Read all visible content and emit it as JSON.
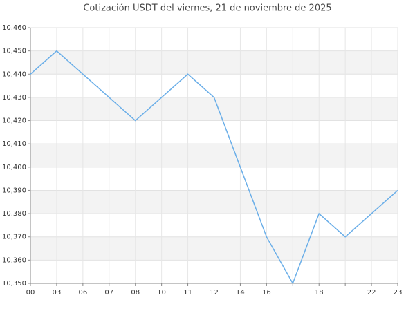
{
  "chart_data": {
    "type": "line",
    "title": "Cotización USDT del viernes, 21 de noviembre de 2025",
    "categories": [
      "00",
      "03",
      "06",
      "07",
      "08",
      "10",
      "11",
      "12",
      "14",
      "16",
      null,
      "18",
      null,
      "22",
      "23"
    ],
    "series": [
      {
        "color": "#6aaee8",
        "values": [
          10.44,
          10.45,
          10.44,
          10.43,
          10.42,
          10.43,
          10.44,
          10.43,
          10.4,
          10.37,
          10.35,
          10.38,
          10.37,
          10.38,
          10.39
        ]
      }
    ],
    "ylim": [
      10.35,
      10.46
    ],
    "yticks": [
      {
        "value": 10.35,
        "label": "10,350"
      },
      {
        "value": 10.36,
        "label": "10,360"
      },
      {
        "value": 10.37,
        "label": "10,370"
      },
      {
        "value": 10.38,
        "label": "10,380"
      },
      {
        "value": 10.39,
        "label": "10,390"
      },
      {
        "value": 10.4,
        "label": "10,400"
      },
      {
        "value": 10.41,
        "label": "10,410"
      },
      {
        "value": 10.42,
        "label": "10,420"
      },
      {
        "value": 10.43,
        "label": "10,430"
      },
      {
        "value": 10.44,
        "label": "10,440"
      },
      {
        "value": 10.45,
        "label": "10,450"
      },
      {
        "value": 10.46,
        "label": "10,460"
      }
    ],
    "grid": true
  }
}
